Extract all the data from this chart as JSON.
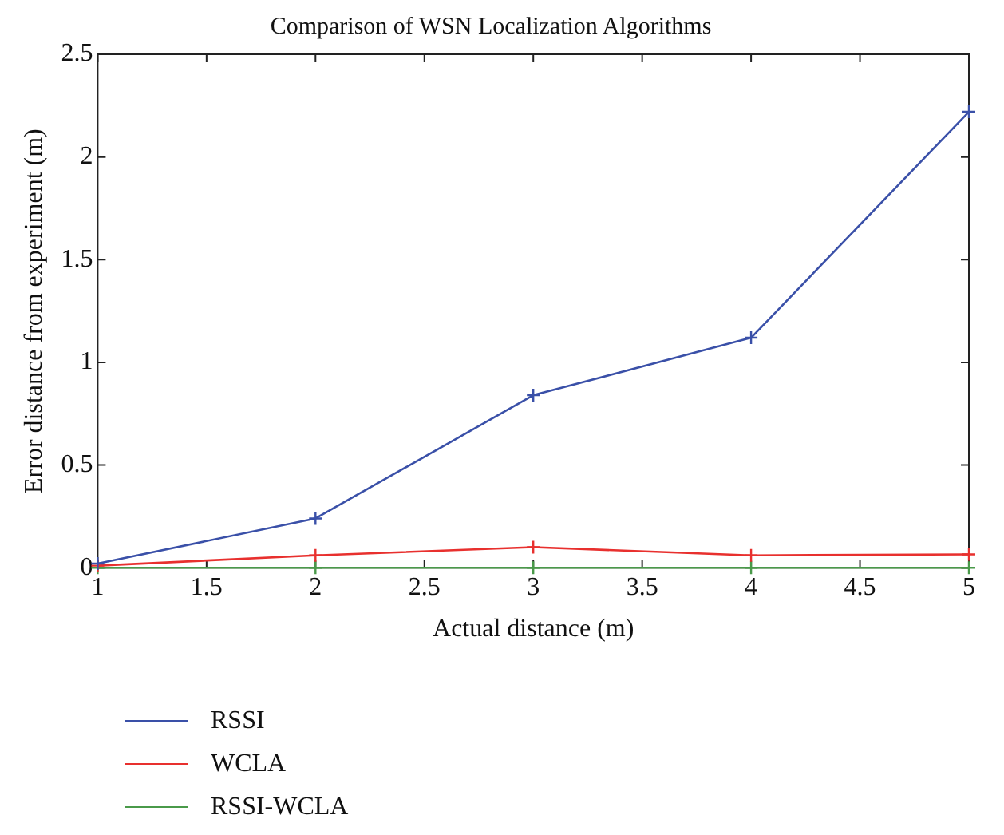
{
  "chart_data": {
    "type": "line",
    "title": "Comparison of WSN Localization Algorithms",
    "xlabel": "Actual distance (m)",
    "ylabel": "Error distance from experiment (m)",
    "x": [
      1,
      2,
      3,
      4,
      5
    ],
    "series": [
      {
        "name": "RSSI",
        "color": "#3a50a8",
        "marker": "cross",
        "values": [
          0.02,
          0.24,
          0.84,
          1.12,
          2.22
        ]
      },
      {
        "name": "WCLA",
        "color": "#e8302e",
        "marker": "cross",
        "values": [
          0.01,
          0.06,
          0.1,
          0.06,
          0.065
        ]
      },
      {
        "name": "RSSI-WCLA",
        "color": "#4a9a4a",
        "marker": "cross",
        "values": [
          0,
          0,
          0,
          0,
          0
        ]
      }
    ],
    "xlim": [
      1,
      5
    ],
    "xticks": [
      1,
      1.5,
      2,
      2.5,
      3,
      3.5,
      4,
      4.5,
      5
    ],
    "ylim": [
      0,
      2.5
    ],
    "yticks": [
      0,
      0.5,
      1,
      1.5,
      2,
      2.5
    ],
    "grid": false,
    "legend": "bottom",
    "line_style": "solid"
  }
}
